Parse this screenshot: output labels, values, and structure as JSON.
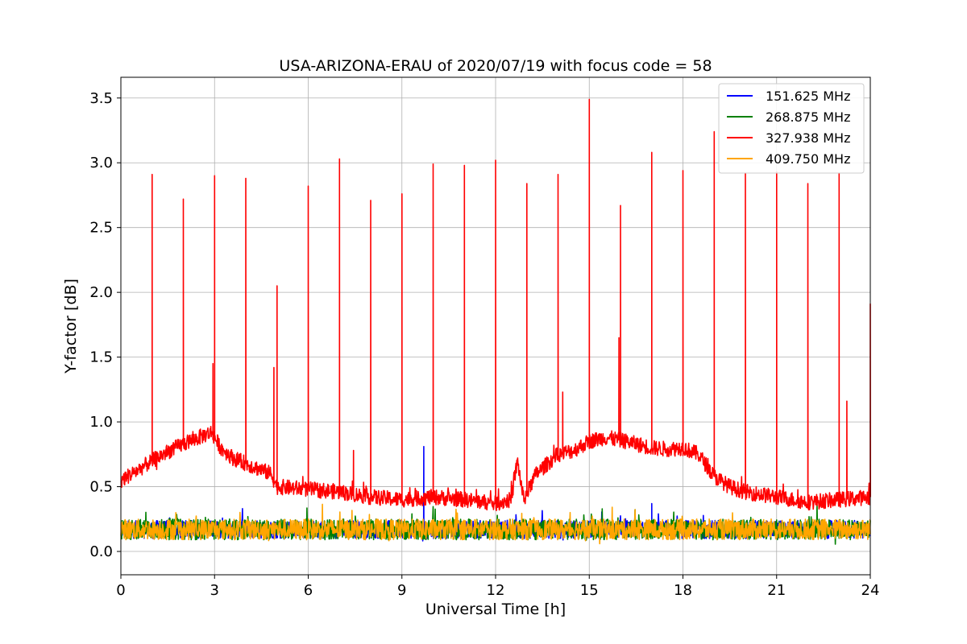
{
  "chart_data": {
    "type": "line",
    "title": "USA-ARIZONA-ERAU of 2020/07/19 with focus code = 58",
    "xlabel": "Universal Time [h]",
    "ylabel": "Y-factor [dB]",
    "xlim": [
      0,
      24
    ],
    "ylim": [
      -0.18,
      3.66
    ],
    "xticks": [
      0,
      3,
      6,
      9,
      12,
      15,
      18,
      21,
      24
    ],
    "yticks": [
      0.0,
      0.5,
      1.0,
      1.5,
      2.0,
      2.5,
      3.0,
      3.5
    ],
    "grid": true,
    "legend_position": "top-right",
    "series": [
      {
        "name": "151.625 MHz",
        "color": "#0000ff",
        "baseline": 0.17,
        "noise": 0.07,
        "spikes": [
          [
            9.7,
            0.81
          ],
          [
            17.0,
            0.37
          ]
        ]
      },
      {
        "name": "268.875 MHz",
        "color": "#008000",
        "baseline": 0.17,
        "noise": 0.08,
        "spikes": []
      },
      {
        "name": "327.938 MHz",
        "color": "#ff0000",
        "envelope": [
          [
            0,
            0.55
          ],
          [
            0.5,
            0.62
          ],
          [
            1.0,
            0.7
          ],
          [
            1.5,
            0.77
          ],
          [
            2.0,
            0.83
          ],
          [
            2.5,
            0.88
          ],
          [
            2.9,
            0.92
          ],
          [
            3.2,
            0.8
          ],
          [
            3.6,
            0.72
          ],
          [
            4.2,
            0.66
          ],
          [
            4.8,
            0.6
          ],
          [
            5.0,
            0.5
          ],
          [
            6.0,
            0.48
          ],
          [
            7.0,
            0.46
          ],
          [
            8.0,
            0.42
          ],
          [
            9.0,
            0.4
          ],
          [
            10.0,
            0.42
          ],
          [
            11.0,
            0.4
          ],
          [
            12.0,
            0.37
          ],
          [
            12.5,
            0.4
          ],
          [
            12.7,
            0.7
          ],
          [
            12.9,
            0.4
          ],
          [
            13.3,
            0.6
          ],
          [
            14.0,
            0.75
          ],
          [
            14.5,
            0.78
          ],
          [
            15.0,
            0.85
          ],
          [
            15.5,
            0.88
          ],
          [
            16.0,
            0.86
          ],
          [
            16.5,
            0.83
          ],
          [
            17.0,
            0.8
          ],
          [
            17.5,
            0.79
          ],
          [
            18.0,
            0.8
          ],
          [
            18.5,
            0.75
          ],
          [
            19.0,
            0.58
          ],
          [
            19.5,
            0.5
          ],
          [
            20.0,
            0.46
          ],
          [
            21.0,
            0.42
          ],
          [
            22.0,
            0.38
          ],
          [
            23.0,
            0.4
          ],
          [
            24.0,
            0.42
          ]
        ],
        "noise": 0.06,
        "spikes": [
          [
            1,
            2.91
          ],
          [
            2,
            2.72
          ],
          [
            3,
            2.9
          ],
          [
            2.95,
            1.45
          ],
          [
            4,
            2.88
          ],
          [
            4.9,
            1.42
          ],
          [
            5,
            2.05
          ],
          [
            6,
            2.82
          ],
          [
            7,
            3.03
          ],
          [
            7.45,
            0.78
          ],
          [
            8,
            2.71
          ],
          [
            9,
            2.76
          ],
          [
            10,
            2.99
          ],
          [
            11,
            2.98
          ],
          [
            12,
            3.02
          ],
          [
            13,
            2.84
          ],
          [
            14,
            2.91
          ],
          [
            14.15,
            1.23
          ],
          [
            15,
            3.49
          ],
          [
            15.95,
            1.65
          ],
          [
            16,
            2.67
          ],
          [
            17,
            3.08
          ],
          [
            18,
            2.94
          ],
          [
            19,
            3.24
          ],
          [
            20,
            2.92
          ],
          [
            21,
            2.93
          ],
          [
            22,
            2.84
          ],
          [
            23,
            2.92
          ],
          [
            23.25,
            1.16
          ],
          [
            24,
            1.91
          ]
        ]
      },
      {
        "name": "409.750 MHz",
        "color": "#ffa500",
        "baseline": 0.17,
        "noise": 0.08,
        "spikes": []
      }
    ]
  }
}
